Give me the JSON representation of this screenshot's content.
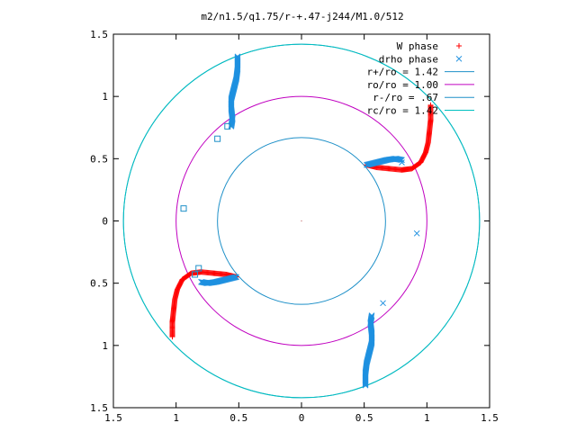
{
  "chart_data": {
    "type": "scatter",
    "title": "m2/n1.5/q1.75/r-+.47-j244/M1.0/512",
    "xlim": [
      -1.5,
      1.5
    ],
    "ylim": [
      -1.5,
      1.5
    ],
    "xticks": [
      "1.5",
      "1",
      "0.5",
      "0",
      "0.5",
      "1",
      "1.5"
    ],
    "yticks": [
      "1.5",
      "1",
      "0.5",
      "0",
      "0.5",
      "1",
      "1.5"
    ],
    "grid": false,
    "legend_position": "top-right",
    "series": [
      {
        "name": "W phase",
        "marker": "+",
        "color": "#ff0000",
        "arms": [
          [
            [
              0.52,
              0.45
            ],
            [
              0.6,
              0.43
            ],
            [
              0.7,
              0.42
            ],
            [
              0.8,
              0.41
            ],
            [
              0.88,
              0.42
            ],
            [
              0.95,
              0.47
            ],
            [
              0.99,
              0.55
            ],
            [
              1.01,
              0.63
            ],
            [
              1.02,
              0.72
            ],
            [
              1.03,
              0.81
            ],
            [
              1.03,
              0.88
            ],
            [
              1.03,
              0.93
            ]
          ],
          [
            [
              -0.52,
              -0.45
            ],
            [
              -0.6,
              -0.43
            ],
            [
              -0.7,
              -0.42
            ],
            [
              -0.8,
              -0.41
            ],
            [
              -0.88,
              -0.42
            ],
            [
              -0.95,
              -0.47
            ],
            [
              -0.99,
              -0.55
            ],
            [
              -1.01,
              -0.63
            ],
            [
              -1.02,
              -0.72
            ],
            [
              -1.03,
              -0.81
            ],
            [
              -1.03,
              -0.88
            ],
            [
              -1.03,
              -0.93
            ]
          ]
        ]
      },
      {
        "name": "drho phase",
        "marker": "x",
        "color": "#1e90e0",
        "arms": [
          [
            [
              -0.56,
              0.76
            ],
            [
              -0.55,
              0.82
            ],
            [
              -0.56,
              0.9
            ],
            [
              -0.56,
              0.98
            ],
            [
              -0.54,
              1.06
            ],
            [
              -0.52,
              1.14
            ],
            [
              -0.51,
              1.22
            ],
            [
              -0.51,
              1.32
            ]
          ],
          [
            [
              0.56,
              -0.76
            ],
            [
              0.55,
              -0.82
            ],
            [
              0.56,
              -0.9
            ],
            [
              0.56,
              -0.98
            ],
            [
              0.54,
              -1.06
            ],
            [
              0.52,
              -1.14
            ],
            [
              0.51,
              -1.22
            ],
            [
              0.51,
              -1.32
            ]
          ],
          [
            [
              0.52,
              0.45
            ],
            [
              0.6,
              0.47
            ],
            [
              0.68,
              0.49
            ],
            [
              0.75,
              0.5
            ],
            [
              0.8,
              0.49
            ]
          ],
          [
            [
              -0.52,
              -0.45
            ],
            [
              -0.6,
              -0.47
            ],
            [
              -0.68,
              -0.49
            ],
            [
              -0.75,
              -0.5
            ],
            [
              -0.8,
              -0.49
            ]
          ]
        ],
        "scattered_points": [
          [
            0.92,
            -0.1
          ],
          [
            0.65,
            -0.66
          ],
          [
            0.8,
            0.47
          ]
        ]
      }
    ],
    "square_markers": [
      [
        -0.94,
        0.1
      ],
      [
        -0.67,
        0.66
      ],
      [
        -0.85,
        -0.43
      ],
      [
        -0.59,
        0.76
      ],
      [
        -0.82,
        -0.38
      ]
    ],
    "circles": [
      {
        "name": "r+/ro = 1.42",
        "radius": 1.42,
        "color": "#1e90c8"
      },
      {
        "name": "ro/ro = 1.00",
        "radius": 1.0,
        "color": "#c000c0"
      },
      {
        "name": "r-/ro = .67",
        "radius": 0.67,
        "color": "#1e90c8"
      },
      {
        "name": "rc/ro = 1.42",
        "radius": 1.42,
        "color": "#00c0c0"
      }
    ],
    "legend": [
      {
        "label": "W phase",
        "kind": "marker",
        "symbol": "+",
        "color": "#ff0000"
      },
      {
        "label": "drho phase",
        "kind": "marker",
        "symbol": "x",
        "color": "#1e90e0"
      },
      {
        "label": "r+/ro = 1.42",
        "kind": "line",
        "color": "#1e90c8"
      },
      {
        "label": "ro/ro = 1.00",
        "kind": "line",
        "color": "#c000c0"
      },
      {
        "label": "r-/ro = .67",
        "kind": "line",
        "color": "#1e90c8"
      },
      {
        "label": "rc/ro = 1.42",
        "kind": "line",
        "color": "#00c0c0"
      }
    ]
  }
}
